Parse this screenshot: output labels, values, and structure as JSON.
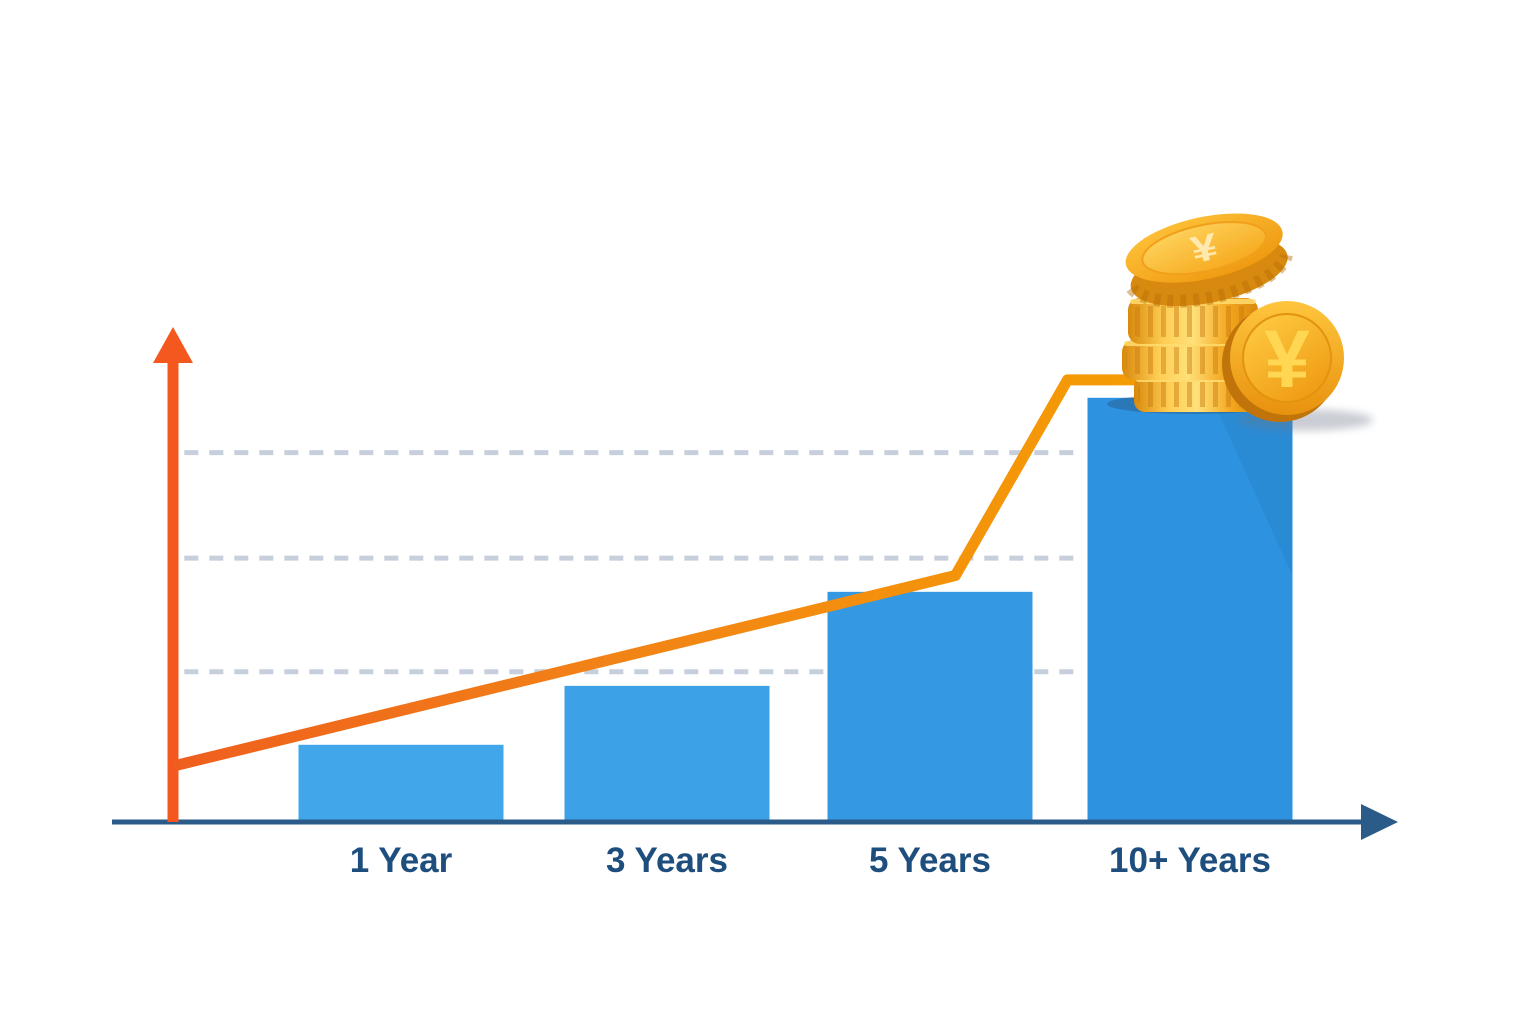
{
  "page": {
    "background": "#ffffff",
    "description": "Infographic chart of investment growth over time: blue bars per holding period, rising orange trend line, gold yen coin stack on the tallest bar"
  },
  "chart_data": {
    "type": "bar",
    "title": "",
    "xlabel": "",
    "ylabel": "",
    "categories": [
      "1 Year",
      "3 Years",
      "5 Years",
      "10+ Years"
    ],
    "series": [
      {
        "name": "growth-bars",
        "type": "bar",
        "values_relative": [
          0.156,
          0.275,
          0.465,
          0.857
        ]
      },
      {
        "name": "growth-trend-line",
        "type": "line",
        "points_pct": [
          [
            11.3,
            74.8
          ],
          [
            62.2,
            56.2
          ],
          [
            69.5,
            37.1
          ],
          [
            74.2,
            37.1
          ]
        ]
      }
    ],
    "ylim": [
      0,
      1
    ],
    "axis_numeric_labels": "none",
    "legend": "none",
    "grid": {
      "style": "dashed",
      "y_pct": [
        44.2,
        54.5,
        65.6
      ],
      "x_start_pct": 12.0,
      "x_end_pct": 70.4
    },
    "annotations": [
      {
        "type": "illustration",
        "name": "yen-coin-stack",
        "position": "on top of the 10+ Years bar"
      }
    ]
  },
  "colors": {
    "bars": [
      "#42A7EA",
      "#3CA1E7",
      "#3498E3",
      "#2D93E0"
    ],
    "axis": "#2B5B89",
    "label_text": "#1E4E7E",
    "y_axis_arrow": "#F4581E",
    "trend_line_start": "#EF5E1E",
    "trend_line_mid": "#F28316",
    "trend_line_end": "#F59C04",
    "gridline": "#C6CFDB",
    "coin_gold": "#F7B733",
    "coin_gold_dark": "#D4880E",
    "coin_symbol": "#FFD752"
  },
  "icons": {
    "currency_symbol": "¥"
  }
}
